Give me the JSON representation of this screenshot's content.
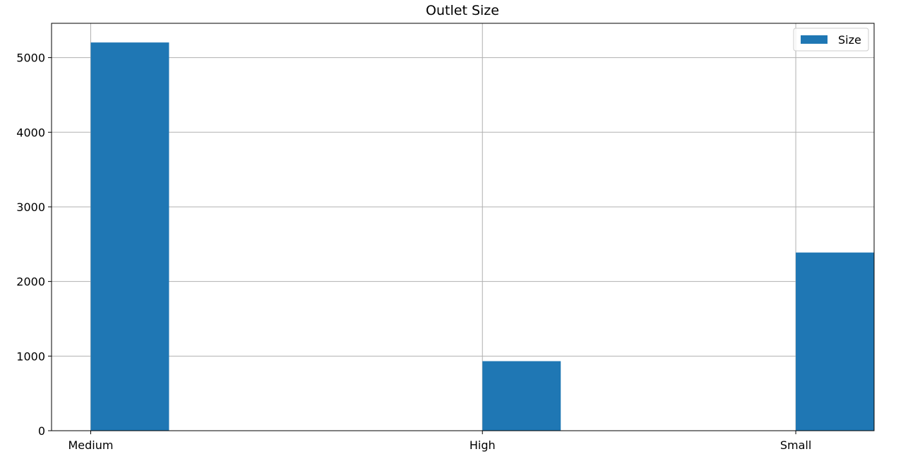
{
  "chart_data": {
    "type": "bar",
    "title": "Outlet Size",
    "xlabel": "",
    "ylabel": "",
    "categories": [
      "Medium",
      "High",
      "Small"
    ],
    "series": [
      {
        "name": "Size",
        "values": [
          5203,
          932,
          2388
        ]
      }
    ],
    "ylim": [
      0,
      5460
    ],
    "yticks": [
      0,
      1000,
      2000,
      3000,
      4000,
      5000
    ],
    "x_positions": [
      0,
      1,
      1.8
    ],
    "xlim": [
      -0.1,
      2.0
    ],
    "bar_width": 0.2,
    "grid": true,
    "legend": "top-right",
    "colors": {
      "bar": "#1f77b4",
      "grid": "#b0b0b0",
      "axis": "#000000"
    }
  }
}
